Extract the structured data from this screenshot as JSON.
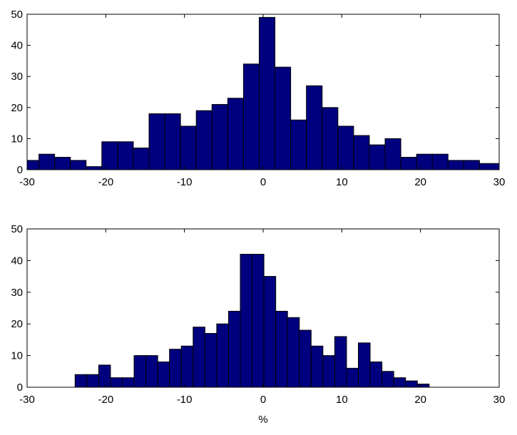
{
  "chart_data": [
    {
      "type": "histogram",
      "bins": [
        -30,
        -28.5,
        -26.5,
        -24.5,
        -22.5,
        -20.5,
        -18.5,
        -16.5,
        -14.5,
        -12.5,
        -10.5,
        -8.5,
        -6.5,
        -4.5,
        -2.5,
        -0.5,
        1.5,
        3.5,
        5.5,
        7.5,
        9.5,
        11.5,
        13.5,
        15.5,
        17.5,
        19.5,
        21.5,
        23.5,
        25.5,
        27.5,
        30
      ],
      "values": [
        3,
        5,
        4,
        3,
        1,
        9,
        9,
        7,
        18,
        18,
        14,
        19,
        21,
        23,
        34,
        49,
        33,
        16,
        27,
        20,
        14,
        11,
        8,
        10,
        4,
        5,
        5,
        3,
        3,
        2
      ],
      "color": "#00007f",
      "xlim": [
        -30,
        30
      ],
      "xticks": [
        -30,
        -20,
        -10,
        0,
        10,
        20,
        30
      ],
      "ylim": [
        0,
        50
      ],
      "yticks": [
        0,
        10,
        20,
        30,
        40,
        50
      ]
    },
    {
      "type": "histogram",
      "bins": [
        -23.9,
        -22.4,
        -20.9,
        -19.4,
        -17.9,
        -16.4,
        -14.9,
        -13.4,
        -11.9,
        -10.4,
        -8.9,
        -7.4,
        -5.9,
        -4.4,
        -2.9,
        -1.4,
        0.1,
        1.6,
        3.1,
        4.6,
        6.1,
        7.6,
        9.1,
        10.6,
        12.1,
        13.6,
        15.1,
        16.6,
        18.1,
        19.6,
        21.1
      ],
      "values": [
        4,
        4,
        7,
        3,
        3,
        10,
        10,
        8,
        12,
        13,
        19,
        17,
        20,
        24,
        42,
        42,
        35,
        24,
        22,
        18,
        13,
        10,
        16,
        6,
        14,
        8,
        5,
        3,
        2,
        1
      ],
      "color": "#00007f",
      "xlabel": "%",
      "xlim": [
        -30,
        30
      ],
      "xticks": [
        -30,
        -20,
        -10,
        0,
        10,
        20,
        30
      ],
      "ylim": [
        0,
        50
      ],
      "yticks": [
        0,
        10,
        20,
        30,
        40,
        50
      ]
    }
  ]
}
